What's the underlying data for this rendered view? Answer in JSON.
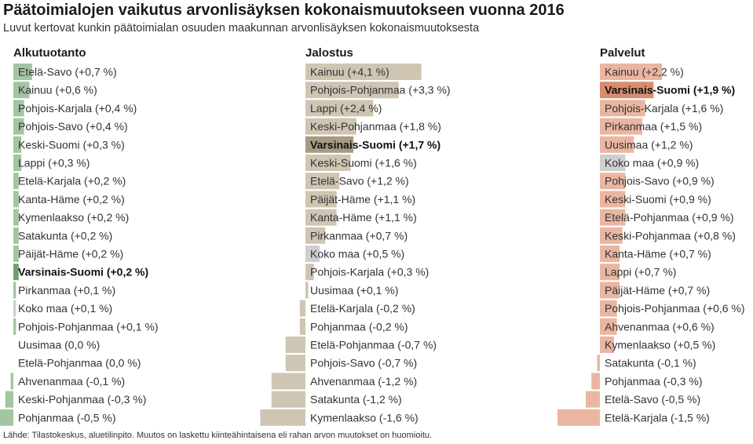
{
  "title": "Päätoimialojen vaikutus arvonlisäyksen kokonaismuutokseen vuonna 2016",
  "subtitle": "Luvut kertovat kunkin päätoimialan osuuden maakunnan arvonlisäyksen kokonaismuutoksesta",
  "source": "Lähde: Tilastokeskus, aluetilinpito. Muutos on laskettu kiinteähintaisena eli rahan arvon muutokset on huomioitu.",
  "colors": {
    "alkutuotanto": "#a3c5a3",
    "alkutuotanto_highlight": "#6f9e74",
    "jalostus": "#cfc5b3",
    "jalostus_highlight": "#a89b84",
    "palvelut": "#eab6a2",
    "palvelut_highlight": "#d98c70",
    "koko_maa": "#cfcfcf"
  },
  "chart_data": [
    {
      "type": "bar",
      "title": "Alkutuotanto",
      "orientation": "horizontal",
      "highlight": "Varsinais-Suomi",
      "reference": "Koko maa",
      "categories": [
        "Etelä-Savo",
        "Kainuu",
        "Pohjois-Karjala",
        "Pohjois-Savo",
        "Keski-Suomi",
        "Lappi",
        "Etelä-Karjala",
        "Kanta-Häme",
        "Kymenlaakso",
        "Satakunta",
        "Päijät-Häme",
        "Varsinais-Suomi",
        "Pirkanmaa",
        "Koko maa",
        "Pohjois-Pohjanmaa",
        "Uusimaa",
        "Etelä-Pohjanmaa",
        "Ahvenanmaa",
        "Keski-Pohjanmaa",
        "Pohjanmaa"
      ],
      "values": [
        0.7,
        0.6,
        0.4,
        0.4,
        0.3,
        0.3,
        0.2,
        0.2,
        0.2,
        0.2,
        0.2,
        0.2,
        0.1,
        0.1,
        0.1,
        0.0,
        0.0,
        -0.1,
        -0.3,
        -0.5
      ],
      "labels": [
        "Etelä-Savo (+0,7 %)",
        "Kainuu (+0,6 %)",
        "Pohjois-Karjala (+0,4 %)",
        "Pohjois-Savo (+0,4 %)",
        "Keski-Suomi (+0,3 %)",
        "Lappi (+0,3 %)",
        "Etelä-Karjala (+0,2 %)",
        "Kanta-Häme (+0,2 %)",
        "Kymenlaakso (+0,2 %)",
        "Satakunta (+0,2 %)",
        "Päijät-Häme (+0,2 %)",
        "Varsinais-Suomi (+0,2 %)",
        "Pirkanmaa (+0,1 %)",
        "Koko maa (+0,1 %)",
        "Pohjois-Pohjanmaa (+0,1 %)",
        "Uusimaa (0,0 %)",
        "Etelä-Pohjanmaa (0,0 %)",
        "Ahvenanmaa (-0,1 %)",
        "Keski-Pohjanmaa (-0,3 %)",
        "Pohjanmaa (-0,5 %)"
      ]
    },
    {
      "type": "bar",
      "title": "Jalostus",
      "orientation": "horizontal",
      "highlight": "Varsinais-Suomi",
      "reference": "Koko maa",
      "categories": [
        "Kainuu",
        "Pohjois-Pohjanmaa",
        "Lappi",
        "Keski-Pohjanmaa",
        "Varsinais-Suomi",
        "Keski-Suomi",
        "Etelä-Savo",
        "Päijät-Häme",
        "Kanta-Häme",
        "Pirkanmaa",
        "Koko maa",
        "Pohjois-Karjala",
        "Uusimaa",
        "Etelä-Karjala",
        "Pohjanmaa",
        "Etelä-Pohjanmaa",
        "Pohjois-Savo",
        "Ahvenanmaa",
        "Satakunta",
        "Kymenlaakso"
      ],
      "values": [
        4.1,
        3.3,
        2.4,
        1.8,
        1.7,
        1.6,
        1.2,
        1.1,
        1.1,
        0.7,
        0.5,
        0.3,
        0.1,
        -0.2,
        -0.2,
        -0.7,
        -0.7,
        -1.2,
        -1.2,
        -1.6
      ],
      "labels": [
        "Kainuu (+4,1 %)",
        "Pohjois-Pohjanmaa (+3,3 %)",
        "Lappi (+2,4 %)",
        "Keski-Pohjanmaa (+1,8 %)",
        "Varsinais-Suomi (+1,7 %)",
        "Keski-Suomi (+1,6 %)",
        "Etelä-Savo (+1,2 %)",
        "Päijät-Häme (+1,1 %)",
        "Kanta-Häme (+1,1 %)",
        "Pirkanmaa (+0,7 %)",
        "Koko maa (+0,5 %)",
        "Pohjois-Karjala (+0,3 %)",
        "Uusimaa (+0,1 %)",
        "Etelä-Karjala (-0,2 %)",
        "Pohjanmaa (-0,2 %)",
        "Etelä-Pohjanmaa (-0,7 %)",
        "Pohjois-Savo (-0,7 %)",
        "Ahvenanmaa (-1,2 %)",
        "Satakunta (-1,2 %)",
        "Kymenlaakso (-1,6 %)"
      ]
    },
    {
      "type": "bar",
      "title": "Palvelut",
      "orientation": "horizontal",
      "highlight": "Varsinais-Suomi",
      "reference": "Koko maa",
      "categories": [
        "Kainuu",
        "Varsinais-Suomi",
        "Pohjois-Karjala",
        "Pirkanmaa",
        "Uusimaa",
        "Koko maa",
        "Pohjois-Savo",
        "Keski-Suomi",
        "Etelä-Pohjanmaa",
        "Keski-Pohjanmaa",
        "Kanta-Häme",
        "Lappi",
        "Päijät-Häme",
        "Pohjois-Pohjanmaa",
        "Ahvenanmaa",
        "Kymenlaakso",
        "Satakunta",
        "Pohjanmaa",
        "Etelä-Savo",
        "Etelä-Karjala"
      ],
      "values": [
        2.2,
        1.9,
        1.6,
        1.5,
        1.2,
        0.9,
        0.9,
        0.9,
        0.9,
        0.8,
        0.7,
        0.7,
        0.7,
        0.6,
        0.6,
        0.5,
        -0.1,
        -0.3,
        -0.5,
        -1.5
      ],
      "labels": [
        "Kainuu (+2,2 %)",
        "Varsinais-Suomi (+1,9 %)",
        "Pohjois-Karjala (+1,6 %)",
        "Pirkanmaa (+1,5 %)",
        "Uusimaa (+1,2 %)",
        "Koko maa (+0,9 %)",
        "Pohjois-Savo (+0,9 %)",
        "Keski-Suomi (+0,9 %)",
        "Etelä-Pohjanmaa (+0,9 %)",
        "Keski-Pohjanmaa (+0,8 %)",
        "Kanta-Häme (+0,7 %)",
        "Lappi (+0,7 %)",
        "Päijät-Häme (+0,7 %)",
        "Pohjois-Pohjanmaa (+0,6 %)",
        "Ahvenanmaa (+0,6 %)",
        "Kymenlaakso (+0,5 %)",
        "Satakunta (-0,1 %)",
        "Pohjanmaa (-0,3 %)",
        "Etelä-Savo (-0,5 %)",
        "Etelä-Karjala (-1,5 %)"
      ]
    }
  ]
}
